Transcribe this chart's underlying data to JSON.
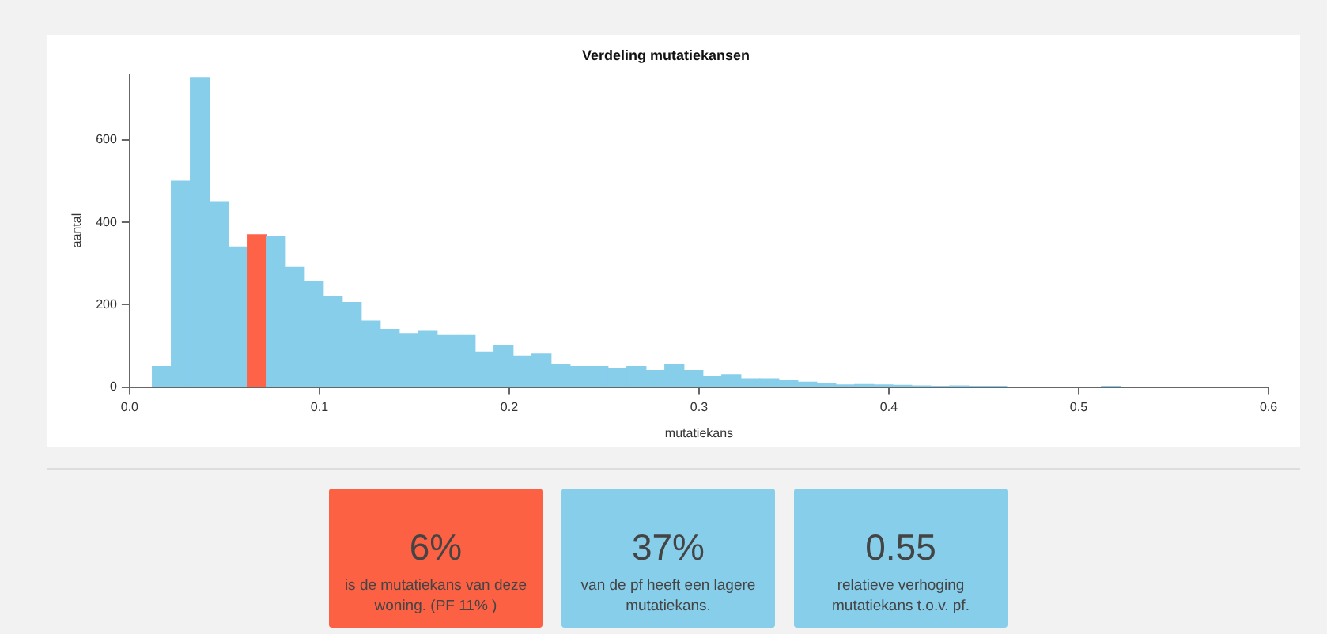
{
  "chart_data": [
    {
      "type": "histogram",
      "title": "Verdeling mutatiekansen",
      "xlabel": "mutatiekans",
      "ylabel": "aantal",
      "bins": [
        0.012,
        0.022,
        0.032,
        0.042,
        0.052,
        0.062,
        0.072,
        0.082,
        0.092,
        0.102,
        0.112,
        0.122,
        0.132,
        0.142,
        0.152,
        0.162,
        0.172,
        0.182,
        0.192,
        0.202,
        0.212,
        0.222,
        0.232,
        0.242,
        0.252,
        0.262,
        0.272,
        0.282,
        0.292,
        0.302,
        0.312,
        0.322,
        0.332,
        0.342,
        0.352,
        0.362,
        0.372,
        0.382,
        0.392,
        0.402,
        0.412,
        0.422,
        0.432,
        0.442,
        0.452,
        0.462,
        0.472,
        0.482,
        0.492,
        0.502,
        0.512,
        0.522
      ],
      "values": [
        50,
        500,
        750,
        450,
        340,
        370,
        365,
        290,
        255,
        220,
        205,
        160,
        140,
        130,
        135,
        125,
        125,
        85,
        100,
        75,
        80,
        55,
        50,
        50,
        45,
        50,
        40,
        55,
        40,
        25,
        30,
        20,
        20,
        15,
        12,
        8,
        5,
        6,
        5,
        4,
        3,
        2,
        3,
        1,
        1,
        0,
        0,
        0,
        0,
        0,
        1
      ],
      "colors": [
        "#87ceeb",
        "#87ceeb",
        "#87ceeb",
        "#87ceeb",
        "#87ceeb",
        "#ff6347",
        "#87ceeb",
        "#87ceeb",
        "#87ceeb",
        "#87ceeb",
        "#87ceeb",
        "#87ceeb",
        "#87ceeb",
        "#87ceeb",
        "#87ceeb",
        "#87ceeb",
        "#87ceeb",
        "#87ceeb",
        "#87ceeb",
        "#87ceeb",
        "#87ceeb",
        "#87ceeb",
        "#87ceeb",
        "#87ceeb",
        "#87ceeb",
        "#87ceeb",
        "#87ceeb",
        "#87ceeb",
        "#87ceeb",
        "#87ceeb",
        "#87ceeb",
        "#87ceeb",
        "#87ceeb",
        "#87ceeb",
        "#87ceeb",
        "#87ceeb",
        "#87ceeb",
        "#87ceeb",
        "#87ceeb",
        "#87ceeb",
        "#87ceeb",
        "#87ceeb",
        "#87ceeb",
        "#87ceeb",
        "#87ceeb",
        "#87ceeb",
        "#87ceeb",
        "#87ceeb",
        "#87ceeb",
        "#87ceeb",
        "#87ceeb"
      ],
      "xlim": [
        0,
        0.6
      ],
      "xticks": [
        {
          "value": 0,
          "label": "0.0"
        },
        0.1,
        0.2,
        0.3,
        0.4,
        0.5,
        0.6
      ],
      "ylim": [
        0,
        760
      ],
      "yticks": [
        0,
        200,
        400,
        600
      ],
      "grid": false,
      "legend": false
    },
    {
      "type": "other",
      "annotations": [
        "6%",
        "is de mutatiekans van deze woning. (PF 11% )",
        "37%",
        "van de pf heeft een lagere mutatiekans.",
        "0.55",
        "relatieve verhoging mutatiekans t.o.v. pf."
      ],
      "colors": [
        "#fd6144",
        "#87ceeb",
        "#87ceeb"
      ]
    }
  ]
}
